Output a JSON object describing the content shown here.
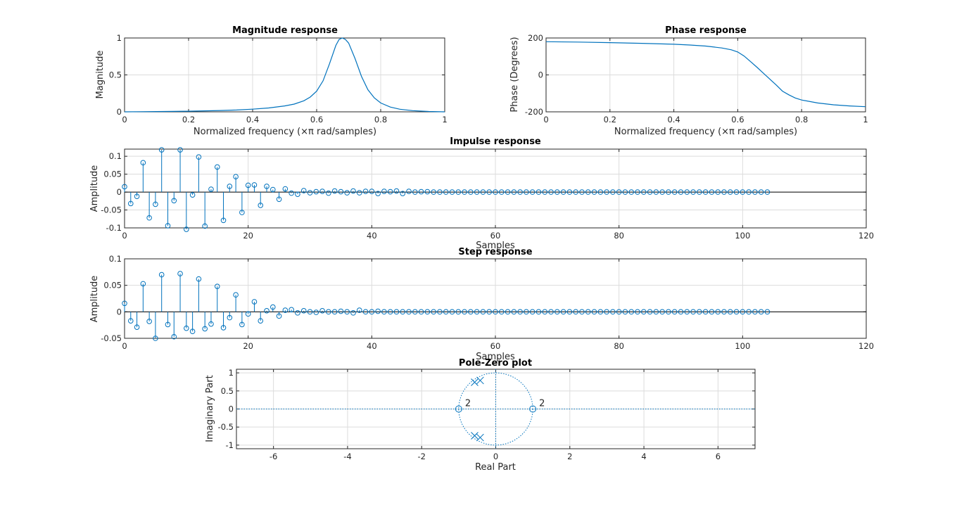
{
  "colors": {
    "series": "#0072bd",
    "axis": "#262626",
    "grid": "#dcdcdc",
    "background": "#ffffff"
  },
  "chart_data": [
    {
      "id": "mag",
      "type": "line",
      "title": "Magnitude response",
      "xlabel": "Normalized frequency (×π rad/samples)",
      "ylabel": "Magnitude",
      "xlim": [
        0,
        1
      ],
      "ylim": [
        0,
        1
      ],
      "xticks": [
        0,
        0.2,
        0.4,
        0.6,
        0.8,
        1
      ],
      "xtick_labels": [
        "0",
        "0.2",
        "0.4",
        "0.6",
        "0.8",
        "1"
      ],
      "yticks": [
        0,
        0.5,
        1
      ],
      "ytick_labels": [
        "0",
        "0.5",
        "1"
      ],
      "grid": true,
      "x": [
        0,
        0.05,
        0.1,
        0.15,
        0.2,
        0.25,
        0.3,
        0.35,
        0.4,
        0.45,
        0.5,
        0.53,
        0.56,
        0.58,
        0.6,
        0.62,
        0.64,
        0.66,
        0.67,
        0.68,
        0.69,
        0.7,
        0.72,
        0.74,
        0.76,
        0.78,
        0.8,
        0.83,
        0.86,
        0.9,
        0.95,
        1
      ],
      "y": [
        0.0,
        0.002,
        0.004,
        0.006,
        0.009,
        0.013,
        0.018,
        0.025,
        0.036,
        0.052,
        0.08,
        0.105,
        0.15,
        0.2,
        0.28,
        0.42,
        0.65,
        0.9,
        0.98,
        1.0,
        0.98,
        0.93,
        0.72,
        0.48,
        0.3,
        0.19,
        0.12,
        0.065,
        0.035,
        0.016,
        0.005,
        0.0
      ]
    },
    {
      "id": "phase",
      "type": "line",
      "title": "Phase response",
      "xlabel": "Normalized frequency (×π rad/samples)",
      "ylabel": "Phase (Degrees)",
      "xlim": [
        0,
        1
      ],
      "ylim": [
        -200,
        200
      ],
      "xticks": [
        0,
        0.2,
        0.4,
        0.6,
        0.8,
        1
      ],
      "xtick_labels": [
        "0",
        "0.2",
        "0.4",
        "0.6",
        "0.8",
        "1"
      ],
      "yticks": [
        -200,
        0,
        200
      ],
      "ytick_labels": [
        "-200",
        "0",
        "200"
      ],
      "grid": true,
      "x": [
        0,
        0.1,
        0.2,
        0.3,
        0.4,
        0.45,
        0.5,
        0.55,
        0.58,
        0.6,
        0.62,
        0.64,
        0.66,
        0.68,
        0.7,
        0.72,
        0.74,
        0.76,
        0.78,
        0.8,
        0.85,
        0.9,
        0.95,
        1
      ],
      "y": [
        180,
        178,
        175,
        171,
        166,
        162,
        156,
        146,
        136,
        124,
        102,
        72,
        42,
        10,
        -22,
        -54,
        -88,
        -108,
        -125,
        -136,
        -152,
        -162,
        -168,
        -172
      ]
    },
    {
      "id": "impulse",
      "type": "stem",
      "title": "Impulse response",
      "xlabel": "Samples",
      "ylabel": "Amplitude",
      "xlim": [
        0,
        120
      ],
      "ylim": [
        -0.1,
        0.12
      ],
      "xticks": [
        0,
        20,
        40,
        60,
        80,
        100,
        120
      ],
      "xtick_labels": [
        "0",
        "20",
        "40",
        "60",
        "80",
        "100",
        "120"
      ],
      "yticks": [
        -0.1,
        -0.05,
        0,
        0.05,
        0.1
      ],
      "ytick_labels": [
        "-0.1",
        "-0.05",
        "0",
        "0.05",
        "0.1"
      ],
      "grid": true,
      "values": [
        0.015,
        -0.032,
        -0.012,
        0.082,
        -0.072,
        -0.034,
        0.118,
        -0.094,
        -0.024,
        0.118,
        -0.104,
        -0.008,
        0.098,
        -0.095,
        0.008,
        0.07,
        -0.079,
        0.016,
        0.043,
        -0.057,
        0.019,
        0.02,
        -0.037,
        0.016,
        0.007,
        -0.02,
        0.009,
        -0.003,
        -0.006,
        0.004,
        -0.002,
        0.001,
        0.002,
        -0.003,
        0.003,
        0.001,
        -0.002,
        0.003,
        -0.002,
        0.002,
        0.002,
        -0.004,
        0.002,
        0.001,
        0.003,
        -0.004,
        0.002,
        0.0,
        0.001,
        0.001,
        0.0,
        0.0,
        0.0,
        0.0,
        0.0,
        0.0,
        0.0,
        0.0,
        0.0,
        0.0,
        0.0,
        0.0,
        0.0,
        0.0,
        0.0,
        0.0,
        0.0,
        0.0,
        0.0,
        0.0,
        0.0,
        0.0,
        0.0,
        0.0,
        0.0,
        0.0,
        0.0,
        0.0,
        0.0,
        0.0,
        0.0,
        0.0,
        0.0,
        0.0,
        0.0,
        0.0,
        0.0,
        0.0,
        0.0,
        0.0,
        0.0,
        0.0,
        0.0,
        0.0,
        0.0,
        0.0,
        0.0,
        0.0,
        0.0,
        0.0,
        0.0,
        0.0,
        0.0,
        0.0,
        0.0
      ]
    },
    {
      "id": "step",
      "type": "stem",
      "title": "Step response",
      "xlabel": "Samples",
      "ylabel": "Amplitude",
      "xlim": [
        0,
        120
      ],
      "ylim": [
        -0.05,
        0.1
      ],
      "xticks": [
        0,
        20,
        40,
        60,
        80,
        100,
        120
      ],
      "xtick_labels": [
        "0",
        "20",
        "40",
        "60",
        "80",
        "100",
        "120"
      ],
      "yticks": [
        -0.05,
        0,
        0.05,
        0.1
      ],
      "ytick_labels": [
        "-0.05",
        "0",
        "0.05",
        "0.1"
      ],
      "grid": true,
      "values": [
        0.016,
        -0.017,
        -0.029,
        0.053,
        -0.018,
        -0.05,
        0.07,
        -0.024,
        -0.047,
        0.072,
        -0.031,
        -0.037,
        0.062,
        -0.032,
        -0.023,
        0.048,
        -0.03,
        -0.011,
        0.032,
        -0.024,
        -0.004,
        0.019,
        -0.017,
        0.002,
        0.009,
        -0.008,
        0.003,
        0.004,
        -0.002,
        0.002,
        0.0,
        -0.001,
        0.002,
        0.0,
        0.0,
        0.001,
        0.0,
        -0.002,
        0.003,
        0.0,
        0.0,
        0.001,
        0.0,
        0.0,
        0.0,
        0.0,
        0.0,
        0.0,
        0.0,
        0.0,
        0.0,
        0.0,
        0.0,
        0.0,
        0.0,
        0.0,
        0.0,
        0.0,
        0.0,
        0.0,
        0.0,
        0.0,
        0.0,
        0.0,
        0.0,
        0.0,
        0.0,
        0.0,
        0.0,
        0.0,
        0.0,
        0.0,
        0.0,
        0.0,
        0.0,
        0.0,
        0.0,
        0.0,
        0.0,
        0.0,
        0.0,
        0.0,
        0.0,
        0.0,
        0.0,
        0.0,
        0.0,
        0.0,
        0.0,
        0.0,
        0.0,
        0.0,
        0.0,
        0.0,
        0.0,
        0.0,
        0.0,
        0.0,
        0.0,
        0.0,
        0.0,
        0.0,
        0.0,
        0.0,
        0.0
      ]
    },
    {
      "id": "pz",
      "type": "scatter",
      "title": "Pole-Zero plot",
      "xlabel": "Real Part",
      "ylabel": "Imaginary Part",
      "xlim": [
        -7,
        7
      ],
      "ylim": [
        -1.1,
        1.1
      ],
      "xticks": [
        -6,
        -4,
        -2,
        0,
        2,
        4,
        6
      ],
      "xtick_labels": [
        "-6",
        "-4",
        "-2",
        "0",
        "2",
        "4",
        "6"
      ],
      "yticks": [
        -1,
        -0.5,
        0,
        0.5,
        1
      ],
      "ytick_labels": [
        "-1",
        "-0.5",
        "0",
        "0.5",
        "1"
      ],
      "grid": true,
      "unit_circle": true,
      "zeros": [
        {
          "re": -1,
          "im": 0,
          "multiplicity_label": "2"
        },
        {
          "re": 1,
          "im": 0,
          "multiplicity_label": "2"
        }
      ],
      "poles": [
        {
          "re": -0.42,
          "im": 0.79
        },
        {
          "re": -0.57,
          "im": 0.74
        },
        {
          "re": -0.42,
          "im": -0.79
        },
        {
          "re": -0.57,
          "im": -0.74
        }
      ]
    }
  ]
}
